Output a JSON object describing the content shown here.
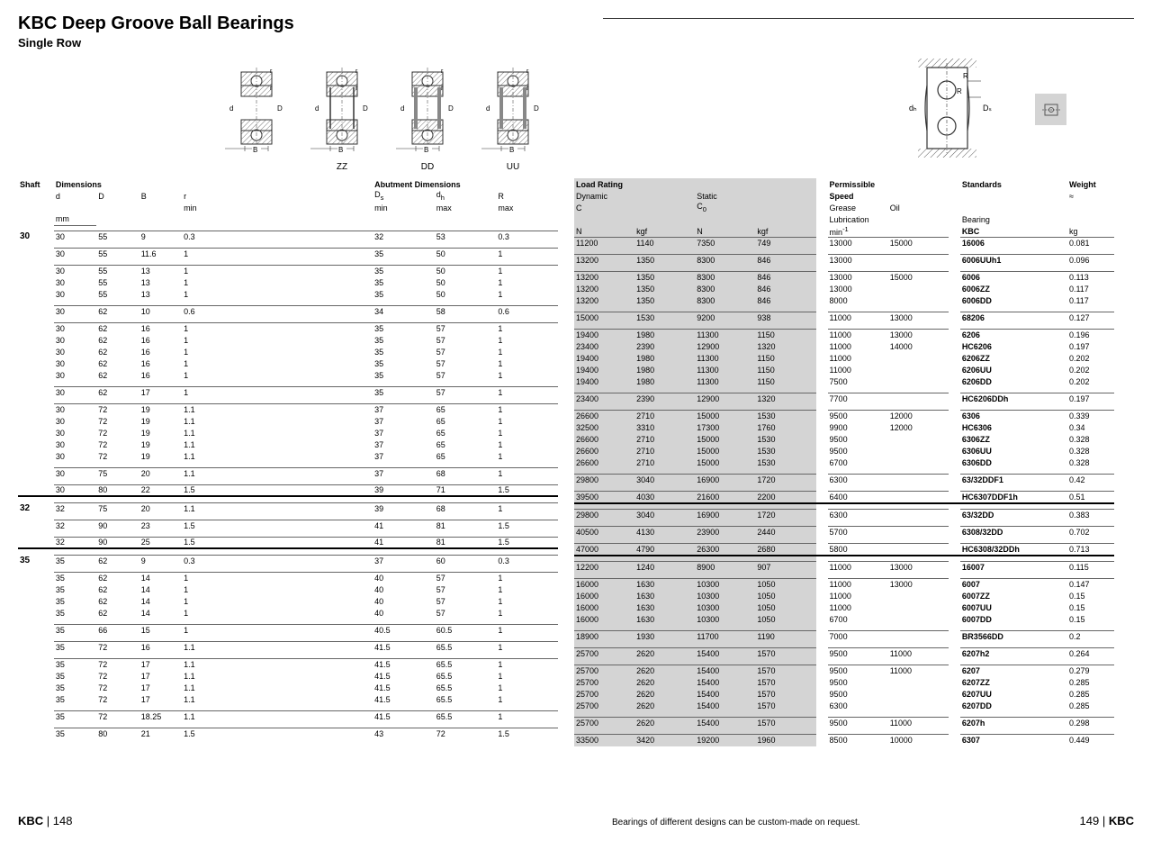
{
  "page": {
    "title": "KBC Deep Groove Ball Bearings",
    "subtitle": "Single Row",
    "diagram_labels": [
      "",
      "ZZ",
      "DD",
      "UU"
    ],
    "footer_left_brand": "KBC",
    "footer_left_page": "148",
    "footer_right_page": "149",
    "footer_right_brand": "KBC",
    "footer_note": "Bearings of different designs can be custom-made on request."
  },
  "left_header": {
    "groups": [
      "Shaft",
      "Dimensions",
      "Abutment Dimensions"
    ],
    "cols": [
      "",
      "d",
      "D",
      "B",
      "r\nmin",
      "",
      "Dₛ\nmin",
      "dₕ\nmax",
      "R\nmax"
    ],
    "unit": "mm"
  },
  "right_header": {
    "groups": [
      "Load Rating",
      "Permissible\nSpeed",
      "Standards",
      "Weight\n≈"
    ],
    "sub1": [
      "Dynamic\nC",
      "Static\nC₀",
      "Grease\nLubrication",
      "Oil",
      "Bearing",
      ""
    ],
    "cols": [
      "N",
      "kgf",
      "N",
      "kgf",
      "min⁻¹",
      "",
      "KBC",
      "kg"
    ]
  },
  "shade_cols": [
    0,
    1,
    2,
    3
  ],
  "groups": [
    {
      "shaft": "30",
      "blocks": [
        [
          [
            "30",
            "55",
            "9",
            "0.3",
            "",
            "32",
            "53",
            "0.3",
            "11200",
            "1140",
            "7350",
            "749",
            "13000",
            "15000",
            "16006",
            "0.081"
          ]
        ],
        [
          [
            "30",
            "55",
            "11.6",
            "1",
            "",
            "35",
            "50",
            "1",
            "13200",
            "1350",
            "8300",
            "846",
            "13000",
            "",
            "6006UUh1",
            "0.096"
          ]
        ],
        [
          [
            "30",
            "55",
            "13",
            "1",
            "",
            "35",
            "50",
            "1",
            "13200",
            "1350",
            "8300",
            "846",
            "13000",
            "15000",
            "6006",
            "0.113"
          ],
          [
            "30",
            "55",
            "13",
            "1",
            "",
            "35",
            "50",
            "1",
            "13200",
            "1350",
            "8300",
            "846",
            "13000",
            "",
            "6006ZZ",
            "0.117"
          ],
          [
            "30",
            "55",
            "13",
            "1",
            "",
            "35",
            "50",
            "1",
            "13200",
            "1350",
            "8300",
            "846",
            "8000",
            "",
            "6006DD",
            "0.117"
          ]
        ],
        [
          [
            "30",
            "62",
            "10",
            "0.6",
            "",
            "34",
            "58",
            "0.6",
            "15000",
            "1530",
            "9200",
            "938",
            "11000",
            "13000",
            "68206",
            "0.127"
          ]
        ],
        [
          [
            "30",
            "62",
            "16",
            "1",
            "",
            "35",
            "57",
            "1",
            "19400",
            "1980",
            "11300",
            "1150",
            "11000",
            "13000",
            "6206",
            "0.196"
          ],
          [
            "30",
            "62",
            "16",
            "1",
            "",
            "35",
            "57",
            "1",
            "23400",
            "2390",
            "12900",
            "1320",
            "11000",
            "14000",
            "HC6206",
            "0.197"
          ],
          [
            "30",
            "62",
            "16",
            "1",
            "",
            "35",
            "57",
            "1",
            "19400",
            "1980",
            "11300",
            "1150",
            "11000",
            "",
            "6206ZZ",
            "0.202"
          ],
          [
            "30",
            "62",
            "16",
            "1",
            "",
            "35",
            "57",
            "1",
            "19400",
            "1980",
            "11300",
            "1150",
            "11000",
            "",
            "6206UU",
            "0.202"
          ],
          [
            "30",
            "62",
            "16",
            "1",
            "",
            "35",
            "57",
            "1",
            "19400",
            "1980",
            "11300",
            "1150",
            "7500",
            "",
            "6206DD",
            "0.202"
          ]
        ],
        [
          [
            "30",
            "62",
            "17",
            "1",
            "",
            "35",
            "57",
            "1",
            "23400",
            "2390",
            "12900",
            "1320",
            "7700",
            "",
            "HC6206DDh",
            "0.197"
          ]
        ],
        [
          [
            "30",
            "72",
            "19",
            "1.1",
            "",
            "37",
            "65",
            "1",
            "26600",
            "2710",
            "15000",
            "1530",
            "9500",
            "12000",
            "6306",
            "0.339"
          ],
          [
            "30",
            "72",
            "19",
            "1.1",
            "",
            "37",
            "65",
            "1",
            "32500",
            "3310",
            "17300",
            "1760",
            "9900",
            "12000",
            "HC6306",
            "0.34"
          ],
          [
            "30",
            "72",
            "19",
            "1.1",
            "",
            "37",
            "65",
            "1",
            "26600",
            "2710",
            "15000",
            "1530",
            "9500",
            "",
            "6306ZZ",
            "0.328"
          ],
          [
            "30",
            "72",
            "19",
            "1.1",
            "",
            "37",
            "65",
            "1",
            "26600",
            "2710",
            "15000",
            "1530",
            "9500",
            "",
            "6306UU",
            "0.328"
          ],
          [
            "30",
            "72",
            "19",
            "1.1",
            "",
            "37",
            "65",
            "1",
            "26600",
            "2710",
            "15000",
            "1530",
            "6700",
            "",
            "6306DD",
            "0.328"
          ]
        ],
        [
          [
            "30",
            "75",
            "20",
            "1.1",
            "",
            "37",
            "68",
            "1",
            "29800",
            "3040",
            "16900",
            "1720",
            "6300",
            "",
            "63/32DDF1",
            "0.42"
          ]
        ],
        [
          [
            "30",
            "80",
            "22",
            "1.5",
            "",
            "39",
            "71",
            "1.5",
            "39500",
            "4030",
            "21600",
            "2200",
            "6400",
            "",
            "HC6307DDF1h",
            "0.51"
          ]
        ]
      ]
    },
    {
      "shaft": "32",
      "blocks": [
        [
          [
            "32",
            "75",
            "20",
            "1.1",
            "",
            "39",
            "68",
            "1",
            "29800",
            "3040",
            "16900",
            "1720",
            "6300",
            "",
            "63/32DD",
            "0.383"
          ]
        ],
        [
          [
            "32",
            "90",
            "23",
            "1.5",
            "",
            "41",
            "81",
            "1.5",
            "40500",
            "4130",
            "23900",
            "2440",
            "5700",
            "",
            "6308/32DD",
            "0.702"
          ]
        ],
        [
          [
            "32",
            "90",
            "25",
            "1.5",
            "",
            "41",
            "81",
            "1.5",
            "47000",
            "4790",
            "26300",
            "2680",
            "5800",
            "",
            "HC6308/32DDh",
            "0.713"
          ]
        ]
      ]
    },
    {
      "shaft": "35",
      "blocks": [
        [
          [
            "35",
            "62",
            "9",
            "0.3",
            "",
            "37",
            "60",
            "0.3",
            "12200",
            "1240",
            "8900",
            "907",
            "11000",
            "13000",
            "16007",
            "0.115"
          ]
        ],
        [
          [
            "35",
            "62",
            "14",
            "1",
            "",
            "40",
            "57",
            "1",
            "16000",
            "1630",
            "10300",
            "1050",
            "11000",
            "13000",
            "6007",
            "0.147"
          ],
          [
            "35",
            "62",
            "14",
            "1",
            "",
            "40",
            "57",
            "1",
            "16000",
            "1630",
            "10300",
            "1050",
            "11000",
            "",
            "6007ZZ",
            "0.15"
          ],
          [
            "35",
            "62",
            "14",
            "1",
            "",
            "40",
            "57",
            "1",
            "16000",
            "1630",
            "10300",
            "1050",
            "11000",
            "",
            "6007UU",
            "0.15"
          ],
          [
            "35",
            "62",
            "14",
            "1",
            "",
            "40",
            "57",
            "1",
            "16000",
            "1630",
            "10300",
            "1050",
            "6700",
            "",
            "6007DD",
            "0.15"
          ]
        ],
        [
          [
            "35",
            "66",
            "15",
            "1",
            "",
            "40.5",
            "60.5",
            "1",
            "18900",
            "1930",
            "11700",
            "1190",
            "7000",
            "",
            "BR3566DD",
            "0.2"
          ]
        ],
        [
          [
            "35",
            "72",
            "16",
            "1.1",
            "",
            "41.5",
            "65.5",
            "1",
            "25700",
            "2620",
            "15400",
            "1570",
            "9500",
            "11000",
            "6207h2",
            "0.264"
          ]
        ],
        [
          [
            "35",
            "72",
            "17",
            "1.1",
            "",
            "41.5",
            "65.5",
            "1",
            "25700",
            "2620",
            "15400",
            "1570",
            "9500",
            "11000",
            "6207",
            "0.279"
          ],
          [
            "35",
            "72",
            "17",
            "1.1",
            "",
            "41.5",
            "65.5",
            "1",
            "25700",
            "2620",
            "15400",
            "1570",
            "9500",
            "",
            "6207ZZ",
            "0.285"
          ],
          [
            "35",
            "72",
            "17",
            "1.1",
            "",
            "41.5",
            "65.5",
            "1",
            "25700",
            "2620",
            "15400",
            "1570",
            "9500",
            "",
            "6207UU",
            "0.285"
          ],
          [
            "35",
            "72",
            "17",
            "1.1",
            "",
            "41.5",
            "65.5",
            "1",
            "25700",
            "2620",
            "15400",
            "1570",
            "6300",
            "",
            "6207DD",
            "0.285"
          ]
        ],
        [
          [
            "35",
            "72",
            "18.25",
            "1.1",
            "",
            "41.5",
            "65.5",
            "1",
            "25700",
            "2620",
            "15400",
            "1570",
            "9500",
            "11000",
            "6207h",
            "0.298"
          ]
        ],
        [
          [
            "35",
            "80",
            "21",
            "1.5",
            "",
            "43",
            "72",
            "1.5",
            "33500",
            "3420",
            "19200",
            "1960",
            "8500",
            "10000",
            "6307",
            "0.449"
          ]
        ]
      ]
    }
  ]
}
